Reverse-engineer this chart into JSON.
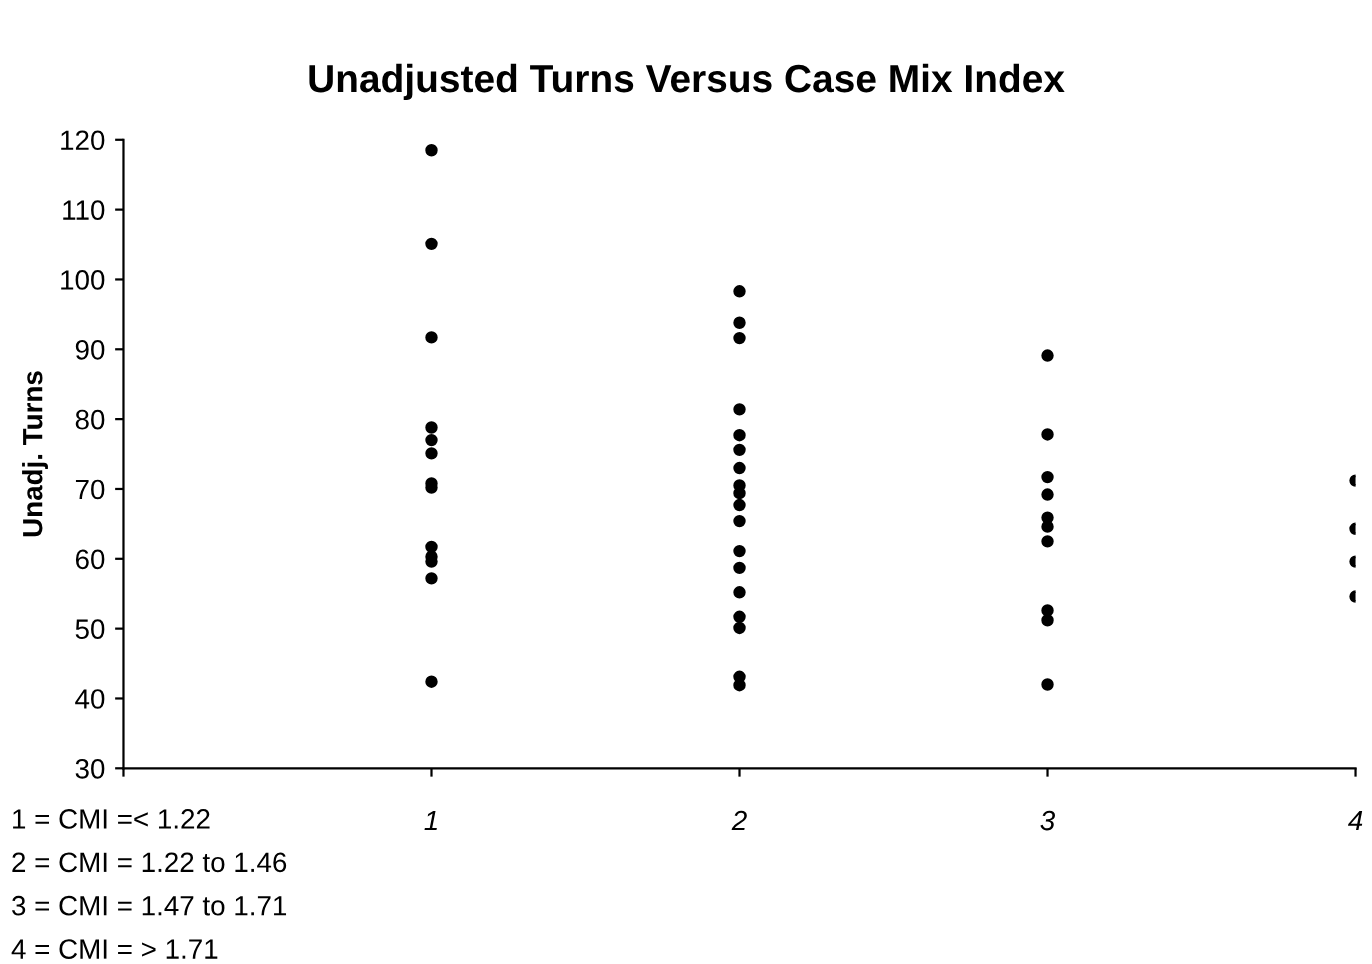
{
  "chart_data": {
    "type": "scatter",
    "title": "Unadjusted Turns Versus Case Mix Index",
    "ylabel": "Unadj. Turns",
    "annotations": [
      "1 = CMI =< 1.22",
      "2 = CMI = 1.22 to 1.46",
      "3 = CMI = 1.47 to 1.71",
      "4 = CMI = > 1.71"
    ],
    "series": [
      {
        "color": "#000000",
        "x": [
          1,
          1,
          1,
          1,
          1,
          1,
          1,
          1,
          1,
          1,
          1,
          1,
          1,
          2,
          2,
          2,
          2,
          2,
          2,
          2,
          2,
          2,
          2,
          2,
          2,
          2,
          2,
          2,
          2,
          2,
          2,
          3,
          3,
          3,
          3,
          3,
          3,
          3,
          3,
          3,
          3,
          4,
          4,
          4,
          4
        ],
        "values": [
          118.5,
          105.1,
          91.7,
          78.8,
          77.0,
          75.1,
          70.8,
          70.2,
          61.7,
          60.3,
          59.6,
          57.2,
          42.4,
          98.3,
          93.8,
          91.6,
          81.4,
          77.7,
          75.6,
          73.0,
          70.5,
          69.4,
          67.7,
          65.4,
          61.1,
          58.7,
          55.2,
          51.7,
          50.1,
          43.1,
          41.9,
          89.1,
          77.8,
          71.7,
          69.2,
          65.9,
          64.6,
          62.5,
          52.6,
          51.2,
          42.0,
          71.2,
          64.3,
          59.6,
          54.6
        ]
      }
    ],
    "xlim": [
      0,
      4
    ],
    "xticks": [
      {
        "value": 0,
        "label": null
      },
      1,
      2,
      3,
      4
    ],
    "ylim": [
      30,
      120
    ],
    "yticks": [
      30,
      40,
      50,
      60,
      70,
      80,
      90,
      100,
      110,
      120
    ],
    "grid": false,
    "legend": false,
    "marker": "circle"
  }
}
